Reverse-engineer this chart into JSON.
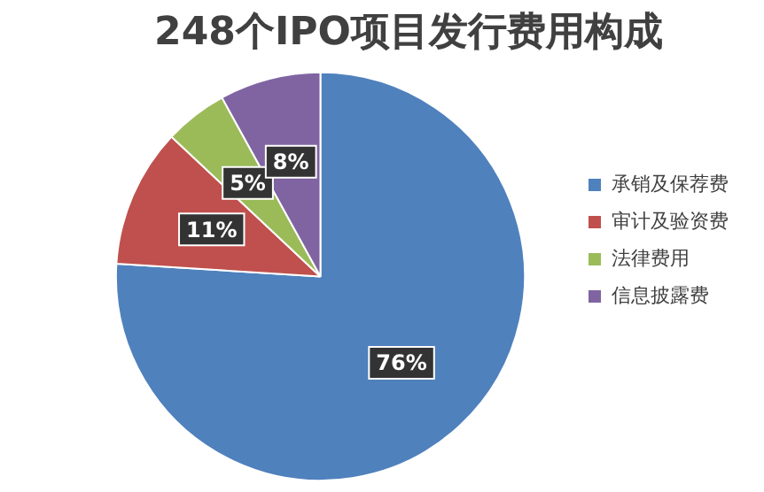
{
  "chart_data": {
    "type": "pie",
    "title": "248个IPO项目发行费用构成",
    "categories": [
      "承销及保荐费",
      "审计及验资费",
      "法律费用",
      "信息披露费"
    ],
    "values": [
      76,
      11,
      5,
      8
    ],
    "colors": [
      "#4f81bd",
      "#c0504d",
      "#9bbb59",
      "#8064a2"
    ],
    "value_labels": [
      "76%",
      "11%",
      "5%",
      "8%"
    ],
    "legend": "right"
  }
}
